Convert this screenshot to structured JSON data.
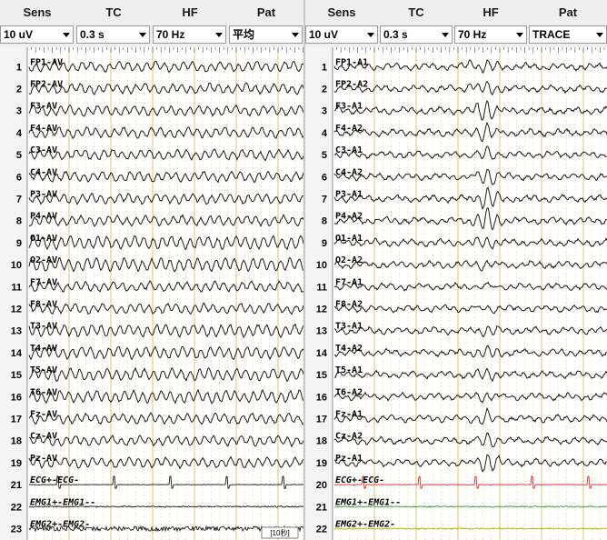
{
  "headers": [
    "Sens",
    "TC",
    "HF",
    "Pat"
  ],
  "panels": [
    {
      "id": "left",
      "selects": {
        "sens": "10 uV",
        "tc": "0.3 s",
        "hf": "70 Hz",
        "pat": "平均"
      },
      "channels": [
        {
          "num": "1",
          "label": "FP1-AV"
        },
        {
          "num": "2",
          "label": "FP2-AV"
        },
        {
          "num": "3",
          "label": "F3-AV"
        },
        {
          "num": "4",
          "label": "F4-AV"
        },
        {
          "num": "5",
          "label": "C3-AV"
        },
        {
          "num": "6",
          "label": "C4-AV"
        },
        {
          "num": "7",
          "label": "P3-AV"
        },
        {
          "num": "8",
          "label": "P4-AV"
        },
        {
          "num": "9",
          "label": "O1-AV"
        },
        {
          "num": "10",
          "label": "O2-AV"
        },
        {
          "num": "11",
          "label": "F7-AV"
        },
        {
          "num": "12",
          "label": "F8-AV"
        },
        {
          "num": "13",
          "label": "T3-AV"
        },
        {
          "num": "14",
          "label": "T4-AV"
        },
        {
          "num": "15",
          "label": "T5-AV"
        },
        {
          "num": "16",
          "label": "T6-AV"
        },
        {
          "num": "17",
          "label": "Fz-AV"
        },
        {
          "num": "18",
          "label": "Cz-AV"
        },
        {
          "num": "19",
          "label": "Pz-AV"
        },
        {
          "num": "21",
          "label": "ECG+-ECG-"
        },
        {
          "num": "22",
          "label": "EMG1+-EMG1--"
        },
        {
          "num": "23",
          "label": "EMG2+-EMG2-"
        }
      ],
      "status_text": "[10秒]"
    },
    {
      "id": "right",
      "selects": {
        "sens": "10 uV",
        "tc": "0.3 s",
        "hf": "70 Hz",
        "pat": "TRACE"
      },
      "channels": [
        {
          "num": "1",
          "label": "FP1-A1"
        },
        {
          "num": "2",
          "label": "FP2-A2"
        },
        {
          "num": "3",
          "label": "F3-A1"
        },
        {
          "num": "4",
          "label": "F4-A2"
        },
        {
          "num": "5",
          "label": "C3-A1"
        },
        {
          "num": "6",
          "label": "C4-A2"
        },
        {
          "num": "7",
          "label": "P3-A1"
        },
        {
          "num": "8",
          "label": "P4-A2"
        },
        {
          "num": "9",
          "label": "O1-A1"
        },
        {
          "num": "10",
          "label": "O2-A2"
        },
        {
          "num": "11",
          "label": "F7-A1"
        },
        {
          "num": "12",
          "label": "F8-A2"
        },
        {
          "num": "13",
          "label": "T3-A1"
        },
        {
          "num": "14",
          "label": "T4-A2"
        },
        {
          "num": "15",
          "label": "T5-A1"
        },
        {
          "num": "16",
          "label": "T6-A2"
        },
        {
          "num": "17",
          "label": "Fz-A1"
        },
        {
          "num": "18",
          "label": "Cz-A2"
        },
        {
          "num": "19",
          "label": "Pz-A1"
        },
        {
          "num": "20",
          "label": "ECG+-ECG-"
        },
        {
          "num": "21",
          "label": "EMG1+-EMG1--"
        },
        {
          "num": "22",
          "label": "EMG2+-EMG2-"
        }
      ]
    }
  ],
  "colors": {
    "trace": "#1a1a1a",
    "ecg_right": "#e03030",
    "emg_right": "#30a030",
    "emg2_right": "#b0b000",
    "minor_grid": "#e8d98a",
    "major_grid": "#d8c86a",
    "separator": "#c8c8c8"
  },
  "icons": {
    "dropdown": "chevron-down-icon"
  }
}
